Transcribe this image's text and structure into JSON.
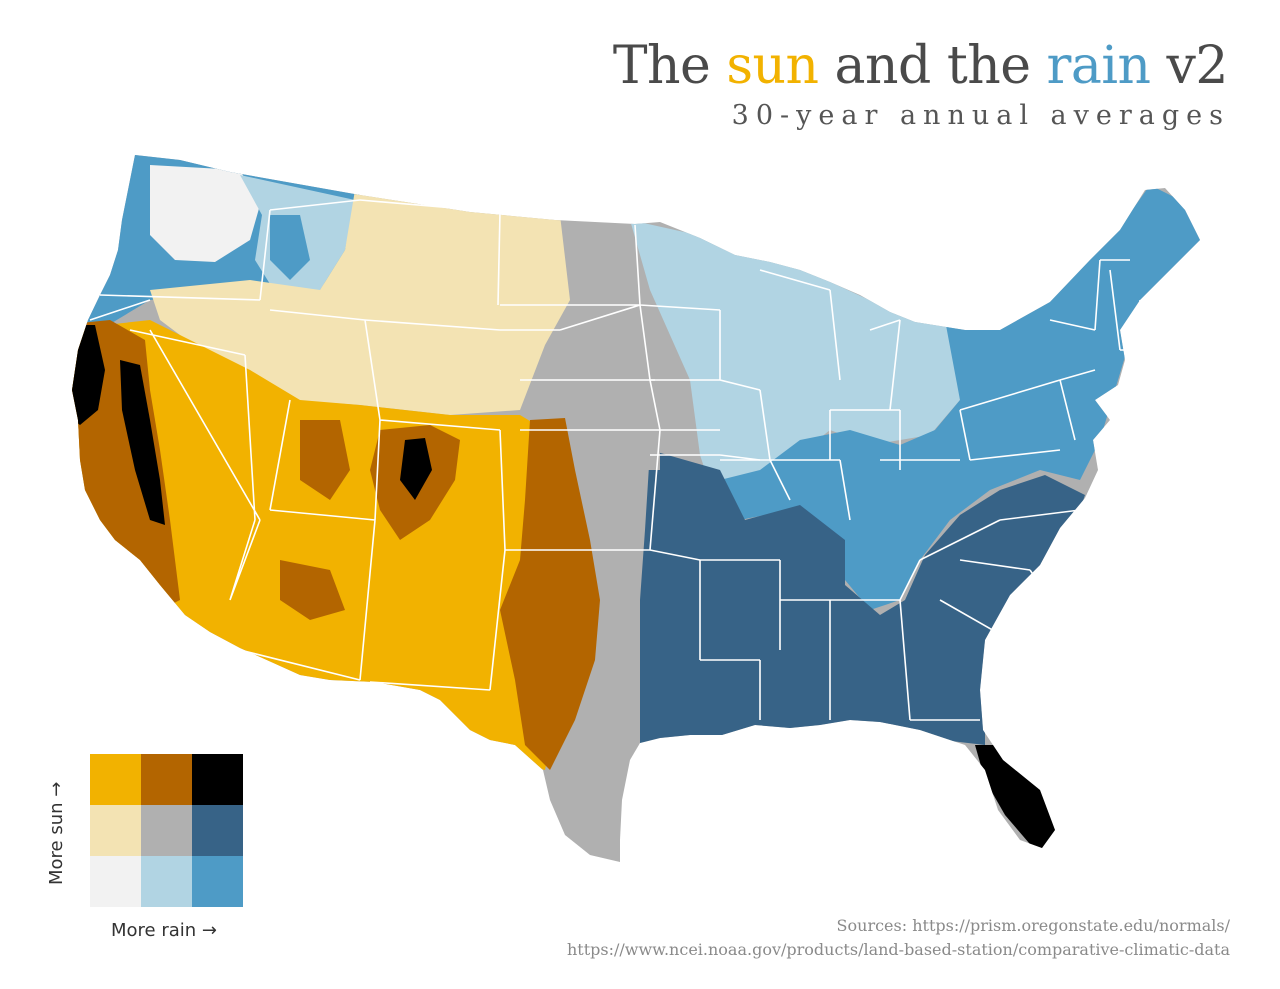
{
  "title": {
    "part1": "The ",
    "sun": "sun",
    "part2": " and the ",
    "rain": "rain",
    "part3": " v2"
  },
  "subtitle": "30-year annual averages",
  "legend": {
    "y_label": "More sun →",
    "x_label": "More rain →",
    "colors": [
      [
        "#f2b200",
        "#b36500",
        "#000000"
      ],
      [
        "#f3e3b3",
        "#b0b0b0",
        "#376387"
      ],
      [
        "#f2f2f2",
        "#b1d4e3",
        "#4e9bc6"
      ]
    ]
  },
  "colors": {
    "sun_accent": "#f2b200",
    "rain_accent": "#4e9bc6",
    "state_border": "#ffffff"
  },
  "sources": {
    "line1": "Sources: https://prism.oregonstate.edu/normals/",
    "line2": "https://www.ncei.noaa.gov/products/land-based-station/comparative-climatic-data"
  }
}
